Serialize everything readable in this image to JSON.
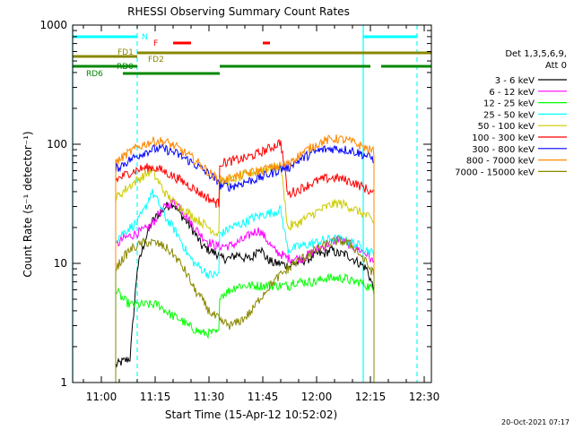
{
  "chart_data": {
    "type": "line",
    "title": "RHESSI Observing Summary Count Rates",
    "xlabel": "Start Time (15-Apr-12 10:52:02)",
    "ylabel": "Count Rate (s⁻¹ detector⁻¹)",
    "ylog": true,
    "ylim": [
      1,
      1000
    ],
    "xlim": [
      "10:52",
      "12:32"
    ],
    "x_ticks": [
      "11:00",
      "11:15",
      "11:30",
      "11:45",
      "12:00",
      "12:15",
      "12:30"
    ],
    "y_ticks": [
      "1",
      "10",
      "100",
      "1000"
    ],
    "footer": "20-Oct-2021 07:17",
    "legend_header": [
      "Det 1,3,5,6,9,",
      "Att 0"
    ],
    "legend_placement": "right",
    "segment_breaks": [
      "11:33",
      "11:53"
    ],
    "series": [
      {
        "name": "3 - 6 keV",
        "color": "#000000",
        "x": [
          "11:04",
          "11:06",
          "11:08",
          "11:10",
          "11:12",
          "11:14",
          "11:16",
          "11:18",
          "11:20",
          "11:22",
          "11:24",
          "11:26",
          "11:28",
          "11:30",
          "11:32",
          "11:34",
          "11:36",
          "11:38",
          "11:40",
          "11:42",
          "11:44",
          "11:46",
          "11:48",
          "11:50",
          "11:52",
          "11:54",
          "11:56",
          "11:58",
          "12:00",
          "12:02",
          "12:04",
          "12:06",
          "12:08",
          "12:10",
          "12:12",
          "12:14",
          "12:16"
        ],
        "y": [
          1.4,
          1.5,
          1.6,
          9,
          15,
          22,
          26,
          30,
          32,
          26,
          22,
          18,
          14,
          13,
          12,
          11,
          11,
          12,
          11,
          11,
          14,
          11,
          10,
          10,
          9.5,
          10,
          10.5,
          11,
          12,
          12,
          13,
          12,
          12,
          11,
          10,
          9,
          6
        ]
      },
      {
        "name": "6 - 12 keV",
        "color": "#ff00ff",
        "x": [
          "11:04",
          "11:06",
          "11:08",
          "11:10",
          "11:12",
          "11:14",
          "11:16",
          "11:18",
          "11:20",
          "11:22",
          "11:24",
          "11:26",
          "11:28",
          "11:30",
          "11:32",
          "11:34",
          "11:36",
          "11:38",
          "11:40",
          "11:42",
          "11:44",
          "11:46",
          "11:48",
          "11:50",
          "11:52",
          "11:54",
          "11:56",
          "11:58",
          "12:00",
          "12:02",
          "12:04",
          "12:06",
          "12:08",
          "12:10",
          "12:12",
          "12:14",
          "12:16"
        ],
        "y": [
          14,
          16,
          17,
          18,
          19,
          21,
          26,
          30,
          33,
          30,
          24,
          20,
          17,
          15,
          14,
          14,
          14,
          15,
          16,
          18,
          19,
          16,
          13,
          12,
          11,
          11,
          11,
          12,
          13,
          14,
          15,
          16,
          15,
          14,
          13,
          12,
          10
        ]
      },
      {
        "name": "12 - 25 keV",
        "color": "#00ff00",
        "x": [
          "11:04",
          "11:06",
          "11:08",
          "11:10",
          "11:12",
          "11:14",
          "11:16",
          "11:18",
          "11:20",
          "11:22",
          "11:24",
          "11:26",
          "11:28",
          "11:30",
          "11:32",
          "11:34",
          "11:36",
          "11:38",
          "11:40",
          "11:42",
          "11:44",
          "11:46",
          "11:48",
          "11:50",
          "11:52",
          "11:54",
          "11:56",
          "11:58",
          "12:00",
          "12:02",
          "12:04",
          "12:06",
          "12:08",
          "12:10",
          "12:12",
          "12:14",
          "12:16"
        ],
        "y": [
          6,
          5,
          4.5,
          4.5,
          4.5,
          4.5,
          4.5,
          4,
          3.6,
          3.4,
          3,
          2.8,
          2.6,
          2.6,
          2.6,
          5.5,
          6,
          6.5,
          6.5,
          6.5,
          6.5,
          6.5,
          6.5,
          6.5,
          6.5,
          7,
          7,
          7,
          7,
          7.5,
          7.5,
          7.5,
          7.5,
          7,
          7,
          6.5,
          6
        ]
      },
      {
        "name": "25 - 50 keV",
        "color": "#00ffff",
        "x": [
          "11:04",
          "11:06",
          "11:08",
          "11:10",
          "11:12",
          "11:14",
          "11:16",
          "11:18",
          "11:20",
          "11:22",
          "11:24",
          "11:26",
          "11:28",
          "11:30",
          "11:32",
          "11:34",
          "11:36",
          "11:38",
          "11:40",
          "11:42",
          "11:44",
          "11:46",
          "11:48",
          "11:50",
          "11:52",
          "11:54",
          "11:56",
          "11:58",
          "12:00",
          "12:02",
          "12:04",
          "12:06",
          "12:08",
          "12:10",
          "12:12",
          "12:14",
          "12:16"
        ],
        "y": [
          16,
          18,
          20,
          22,
          28,
          40,
          32,
          24,
          20,
          16,
          12,
          10,
          9,
          8,
          8,
          18,
          20,
          21,
          22,
          24,
          25,
          26,
          27,
          28,
          13,
          13.5,
          14,
          14.5,
          15,
          15.5,
          16,
          16,
          15.5,
          15,
          14,
          13,
          12
        ]
      },
      {
        "name": "50 - 100 keV",
        "color": "#cccc00",
        "x": [
          "11:04",
          "11:06",
          "11:08",
          "11:10",
          "11:12",
          "11:14",
          "11:16",
          "11:18",
          "11:20",
          "11:22",
          "11:24",
          "11:26",
          "11:28",
          "11:30",
          "11:32",
          "11:34",
          "11:36",
          "11:38",
          "11:40",
          "11:42",
          "11:44",
          "11:46",
          "11:48",
          "11:50",
          "11:52",
          "11:54",
          "11:56",
          "11:58",
          "12:00",
          "12:02",
          "12:04",
          "12:06",
          "12:08",
          "12:10",
          "12:12",
          "12:14",
          "12:16"
        ],
        "y": [
          35,
          40,
          45,
          50,
          55,
          60,
          48,
          38,
          33,
          30,
          27,
          24,
          22,
          20,
          18,
          48,
          50,
          52,
          55,
          58,
          60,
          62,
          64,
          66,
          20,
          21,
          23,
          25,
          27,
          29,
          31,
          32,
          31,
          29,
          27,
          25,
          22
        ]
      },
      {
        "name": "100 - 300 keV",
        "color": "#ff0000",
        "x": [
          "11:04",
          "11:06",
          "11:08",
          "11:10",
          "11:12",
          "11:14",
          "11:16",
          "11:18",
          "11:20",
          "11:22",
          "11:24",
          "11:26",
          "11:28",
          "11:30",
          "11:32",
          "11:34",
          "11:36",
          "11:38",
          "11:40",
          "11:42",
          "11:44",
          "11:46",
          "11:48",
          "11:50",
          "11:52",
          "11:54",
          "11:56",
          "11:58",
          "12:00",
          "12:02",
          "12:04",
          "12:06",
          "12:08",
          "12:10",
          "12:12",
          "12:14",
          "12:16"
        ],
        "y": [
          50,
          54,
          58,
          61,
          63,
          64,
          62,
          58,
          54,
          50,
          46,
          42,
          38,
          35,
          32,
          70,
          72,
          74,
          76,
          80,
          84,
          90,
          96,
          105,
          38,
          40,
          43,
          46,
          49,
          51,
          52,
          52,
          50,
          48,
          45,
          42,
          38
        ]
      },
      {
        "name": "300 - 800 keV",
        "color": "#0000ff",
        "x": [
          "11:04",
          "11:06",
          "11:08",
          "11:10",
          "11:12",
          "11:14",
          "11:16",
          "11:18",
          "11:20",
          "11:22",
          "11:24",
          "11:26",
          "11:28",
          "11:30",
          "11:32",
          "11:34",
          "11:36",
          "11:38",
          "11:40",
          "11:42",
          "11:44",
          "11:46",
          "11:48",
          "11:50",
          "11:52",
          "11:54",
          "11:56",
          "11:58",
          "12:00",
          "12:02",
          "12:04",
          "12:06",
          "12:08",
          "12:10",
          "12:12",
          "12:14",
          "12:16"
        ],
        "y": [
          62,
          68,
          74,
          80,
          86,
          90,
          92,
          90,
          86,
          80,
          74,
          68,
          62,
          56,
          50,
          45,
          44,
          46,
          48,
          50,
          52,
          55,
          58,
          62,
          64,
          70,
          76,
          82,
          87,
          90,
          92,
          92,
          90,
          88,
          84,
          80,
          75
        ]
      },
      {
        "name": "800 - 7000 keV",
        "color": "#ff8800",
        "x": [
          "11:04",
          "11:06",
          "11:08",
          "11:10",
          "11:12",
          "11:14",
          "11:16",
          "11:18",
          "11:20",
          "11:22",
          "11:24",
          "11:26",
          "11:28",
          "11:30",
          "11:32",
          "11:34",
          "11:36",
          "11:38",
          "11:40",
          "11:42",
          "11:44",
          "11:46",
          "11:48",
          "11:50",
          "11:52",
          "11:54",
          "11:56",
          "11:58",
          "12:00",
          "12:02",
          "12:04",
          "12:06",
          "12:08",
          "12:10",
          "12:12",
          "12:14",
          "12:16"
        ],
        "y": [
          70,
          78,
          86,
          94,
          100,
          105,
          107,
          104,
          98,
          90,
          82,
          74,
          66,
          58,
          52,
          50,
          52,
          54,
          56,
          58,
          60,
          62,
          64,
          66,
          68,
          76,
          84,
          92,
          100,
          106,
          110,
          111,
          108,
          104,
          98,
          92,
          86
        ]
      },
      {
        "name": "7000 - 15000 keV",
        "color": "#888800",
        "x": [
          "11:04",
          "11:06",
          "11:08",
          "11:10",
          "11:12",
          "11:14",
          "11:16",
          "11:18",
          "11:20",
          "11:22",
          "11:24",
          "11:26",
          "11:28",
          "11:30",
          "11:32",
          "11:34",
          "11:36",
          "11:38",
          "11:40",
          "11:42",
          "11:44",
          "11:46",
          "11:48",
          "11:50",
          "11:52",
          "11:54",
          "11:56",
          "11:58",
          "12:00",
          "12:02",
          "12:04",
          "12:06",
          "12:08",
          "12:10",
          "12:12",
          "12:14",
          "12:16"
        ],
        "y": [
          9,
          11,
          13,
          14,
          15,
          15,
          14.5,
          13.5,
          12,
          10,
          8,
          6,
          5,
          4,
          3.5,
          3.2,
          3,
          3.2,
          3.5,
          4,
          5,
          6,
          7,
          8,
          9,
          10,
          11,
          12,
          13,
          14,
          15,
          15.5,
          15,
          14,
          12,
          10,
          8
        ]
      }
    ],
    "state_bars": [
      {
        "label": "N",
        "color": "#00ffff",
        "x": [
          [
            "10:52",
            "11:10"
          ],
          [
            "12:13",
            "12:28"
          ]
        ]
      },
      {
        "label": "F",
        "color": "#ff0000",
        "x": [
          [
            "11:20",
            "11:25"
          ],
          [
            "11:45",
            "11:47"
          ]
        ]
      },
      {
        "label": "FD1",
        "color": "#888800",
        "x": [
          [
            "10:52",
            "11:10"
          ]
        ]
      },
      {
        "label": "FD2",
        "color": "#888800",
        "x": [
          [
            "11:10",
            "12:32"
          ]
        ]
      },
      {
        "label": "RD0",
        "color": "#008800",
        "x": [
          [
            "10:52",
            "11:10"
          ],
          [
            "11:33",
            "11:54"
          ],
          [
            "11:54",
            "12:15"
          ],
          [
            "12:18",
            "12:32"
          ]
        ]
      },
      {
        "label": "RD6",
        "color": "#008800",
        "x": [
          [
            "11:06",
            "11:33"
          ]
        ]
      }
    ],
    "vlines": [
      {
        "x": "10:52",
        "color": "#00ffff",
        "style": "solid"
      },
      {
        "x": "11:10",
        "color": "#00ffff",
        "style": "dashed"
      },
      {
        "x": "12:13",
        "color": "#00ffff",
        "style": "solid"
      },
      {
        "x": "12:28",
        "color": "#00ffff",
        "style": "dashed"
      }
    ]
  }
}
